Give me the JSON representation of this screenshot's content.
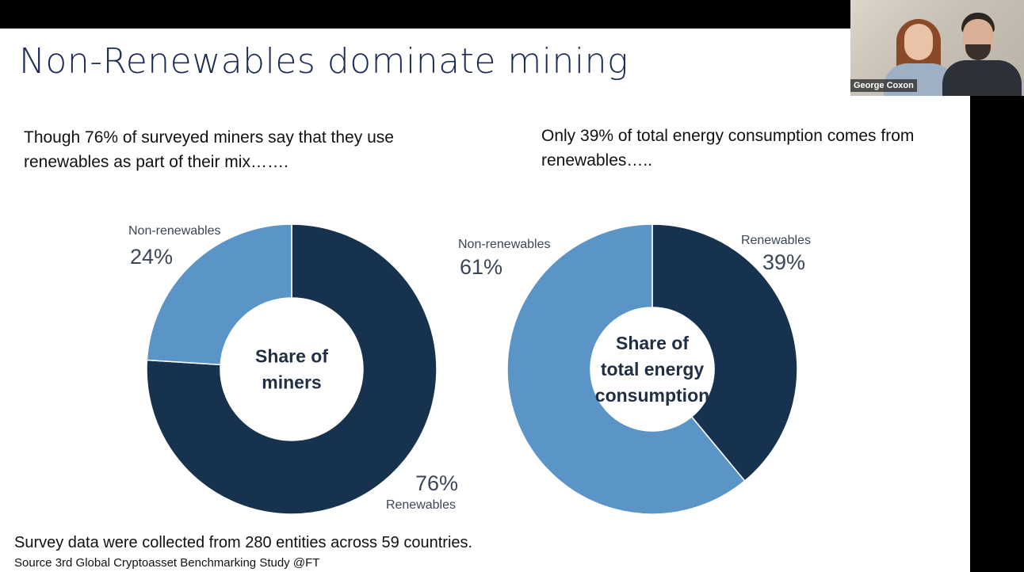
{
  "slide": {
    "title": "Non-Renewables dominate mining",
    "left_caption": "Though 76% of surveyed miners say that they use renewables as part of their mix…….",
    "right_caption": "Only 39% of total energy consumption comes from renewables…..",
    "footnote": "Survey data were collected from 280 entities across 59 countries.",
    "source": "Source 3rd Global Cryptoasset Benchmarking Study @FT"
  },
  "chart_data": [
    {
      "type": "pie",
      "variant": "donut",
      "center_label": [
        "Share of",
        "miners"
      ],
      "slices": [
        {
          "label": "Renewables",
          "value": 76,
          "display": "76%",
          "color": "#16324f"
        },
        {
          "label": "Non-renewables",
          "value": 24,
          "display": "24%",
          "color": "#5b95c8"
        }
      ]
    },
    {
      "type": "pie",
      "variant": "donut",
      "center_label": [
        "Share of",
        "total energy",
        "consumption"
      ],
      "slices": [
        {
          "label": "Renewables",
          "value": 39,
          "display": "39%",
          "color": "#16324f"
        },
        {
          "label": "Non-renewables",
          "value": 61,
          "display": "61%",
          "color": "#5b95c8"
        }
      ]
    }
  ],
  "video": {
    "participant_name": "George Coxon"
  }
}
